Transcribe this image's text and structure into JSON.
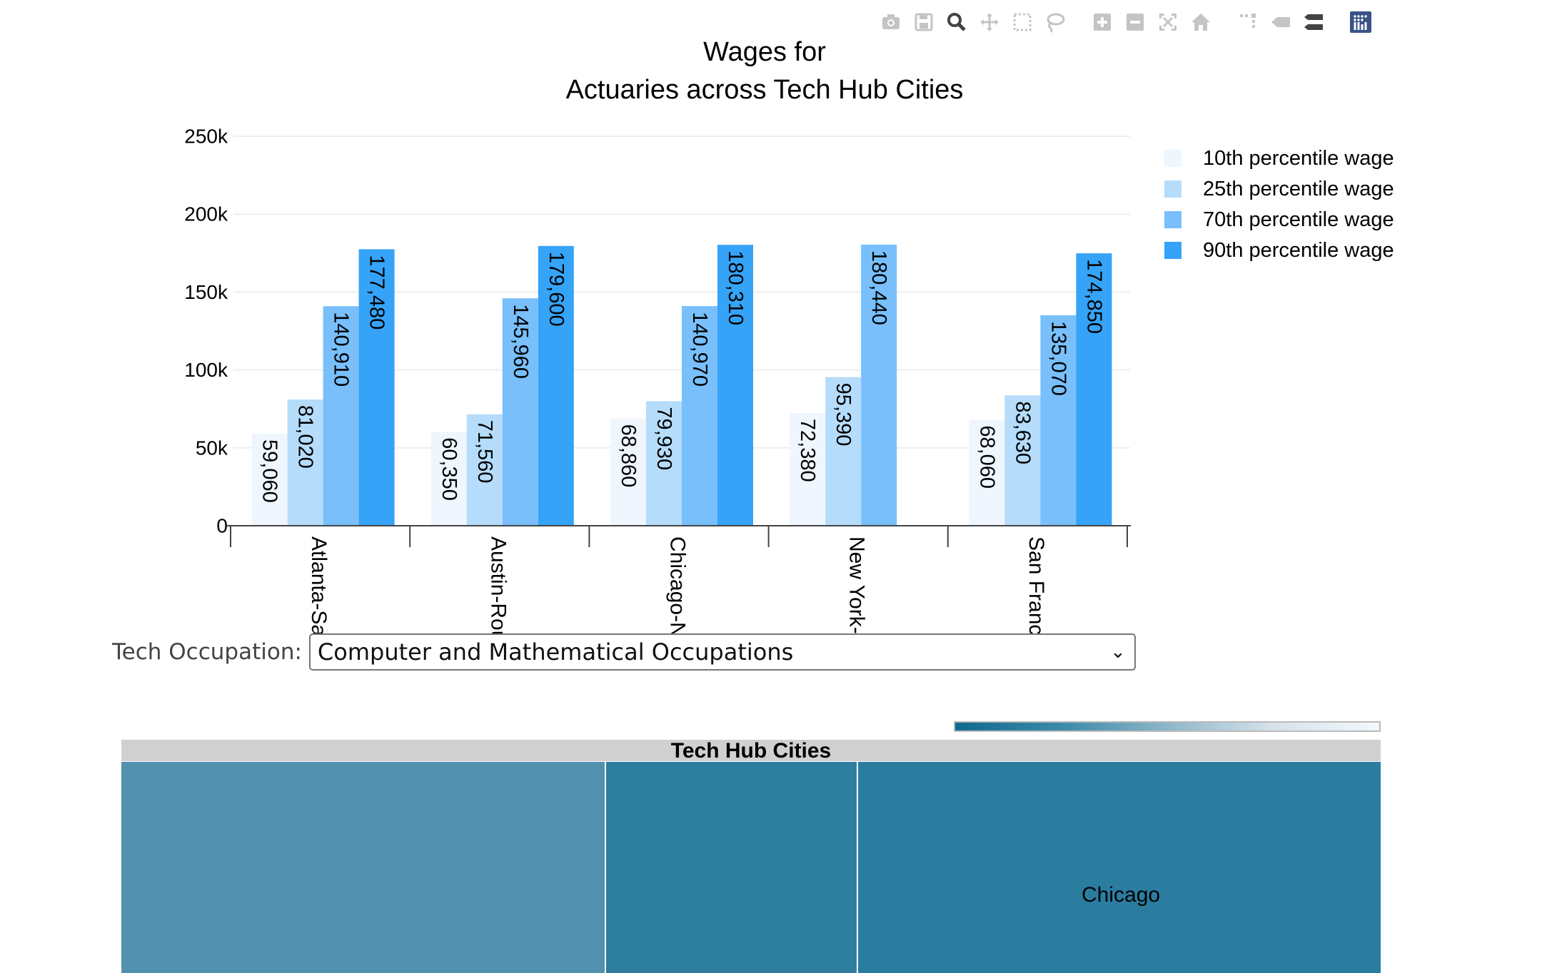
{
  "toolbar": {
    "buttons": [
      {
        "name": "camera-icon",
        "title": "Download plot as a png"
      },
      {
        "name": "save-icon",
        "title": "Save"
      },
      {
        "name": "zoom-icon",
        "title": "Zoom"
      },
      {
        "name": "pan-icon",
        "title": "Pan"
      },
      {
        "name": "box-select-icon",
        "title": "Box Select"
      },
      {
        "name": "lasso-select-icon",
        "title": "Lasso Select"
      },
      {
        "name": "zoom-in-icon",
        "title": "Zoom in"
      },
      {
        "name": "zoom-out-icon",
        "title": "Zoom out"
      },
      {
        "name": "autoscale-icon",
        "title": "Autoscale"
      },
      {
        "name": "home-icon",
        "title": "Reset axes"
      },
      {
        "name": "spikelines-icon",
        "title": "Toggle Spike Lines"
      },
      {
        "name": "hover-closest-icon",
        "title": "Show closest data on hover"
      },
      {
        "name": "hover-compare-icon",
        "title": "Compare data on hover"
      },
      {
        "name": "plotly-logo-icon",
        "title": "Produced with Plotly"
      }
    ]
  },
  "chart_data": {
    "type": "bar",
    "title": "Wages for<br>Actuaries across Tech Hub Cities",
    "title_lines": [
      "Wages for",
      "Actuaries across Tech Hub Cities"
    ],
    "xlabel": "",
    "ylabel": "",
    "categories": [
      "Atlanta-San",
      "Austin-Rour",
      "Chicago-Na",
      "New York-N",
      "San Francis"
    ],
    "ylim": [
      0,
      250000
    ],
    "yticks": [
      0,
      50000,
      100000,
      150000,
      200000,
      250000
    ],
    "ytick_labels": [
      "0",
      "50k",
      "100k",
      "150k",
      "200k",
      "250k"
    ],
    "grid": true,
    "legend_position": "top-right",
    "series": [
      {
        "name": "10th percentile wage",
        "color": "#eff6fe",
        "values": [
          59060,
          60350,
          68860,
          72380,
          68060
        ],
        "labels": [
          "59,060",
          "60,350",
          "68,860",
          "72,380",
          "68,060"
        ]
      },
      {
        "name": "25th percentile wage",
        "color": "#b5dcfb",
        "values": [
          81020,
          71560,
          79930,
          95390,
          83630
        ],
        "labels": [
          "81,020",
          "71,560",
          "79,930",
          "95,390",
          "83,630"
        ]
      },
      {
        "name": "70th percentile wage",
        "color": "#78bffb",
        "values": [
          140910,
          145960,
          140970,
          180440,
          135070
        ],
        "labels": [
          "140,910",
          "145,960",
          "140,970",
          "180,440",
          "135,070"
        ]
      },
      {
        "name": "90th percentile wage",
        "color": "#35a3f8",
        "values": [
          177480,
          179600,
          180310,
          null,
          174850
        ],
        "labels": [
          "177,480",
          "179,600",
          "180,310",
          "",
          "174,850"
        ]
      }
    ]
  },
  "controls": {
    "occupation_label": "Tech Occupation:",
    "occupation_selected": "Computer and Mathematical Occupations"
  },
  "treemap": {
    "title": "Tech Hub Cities",
    "colorscale": [
      "#0f6a8f",
      "#f2f8fb"
    ],
    "tiles": [
      {
        "label": "",
        "color": "#5291ad"
      },
      {
        "label": "",
        "color": "#2e7ea0"
      },
      {
        "label": "Chicago",
        "color": "#2b7da0"
      }
    ]
  }
}
